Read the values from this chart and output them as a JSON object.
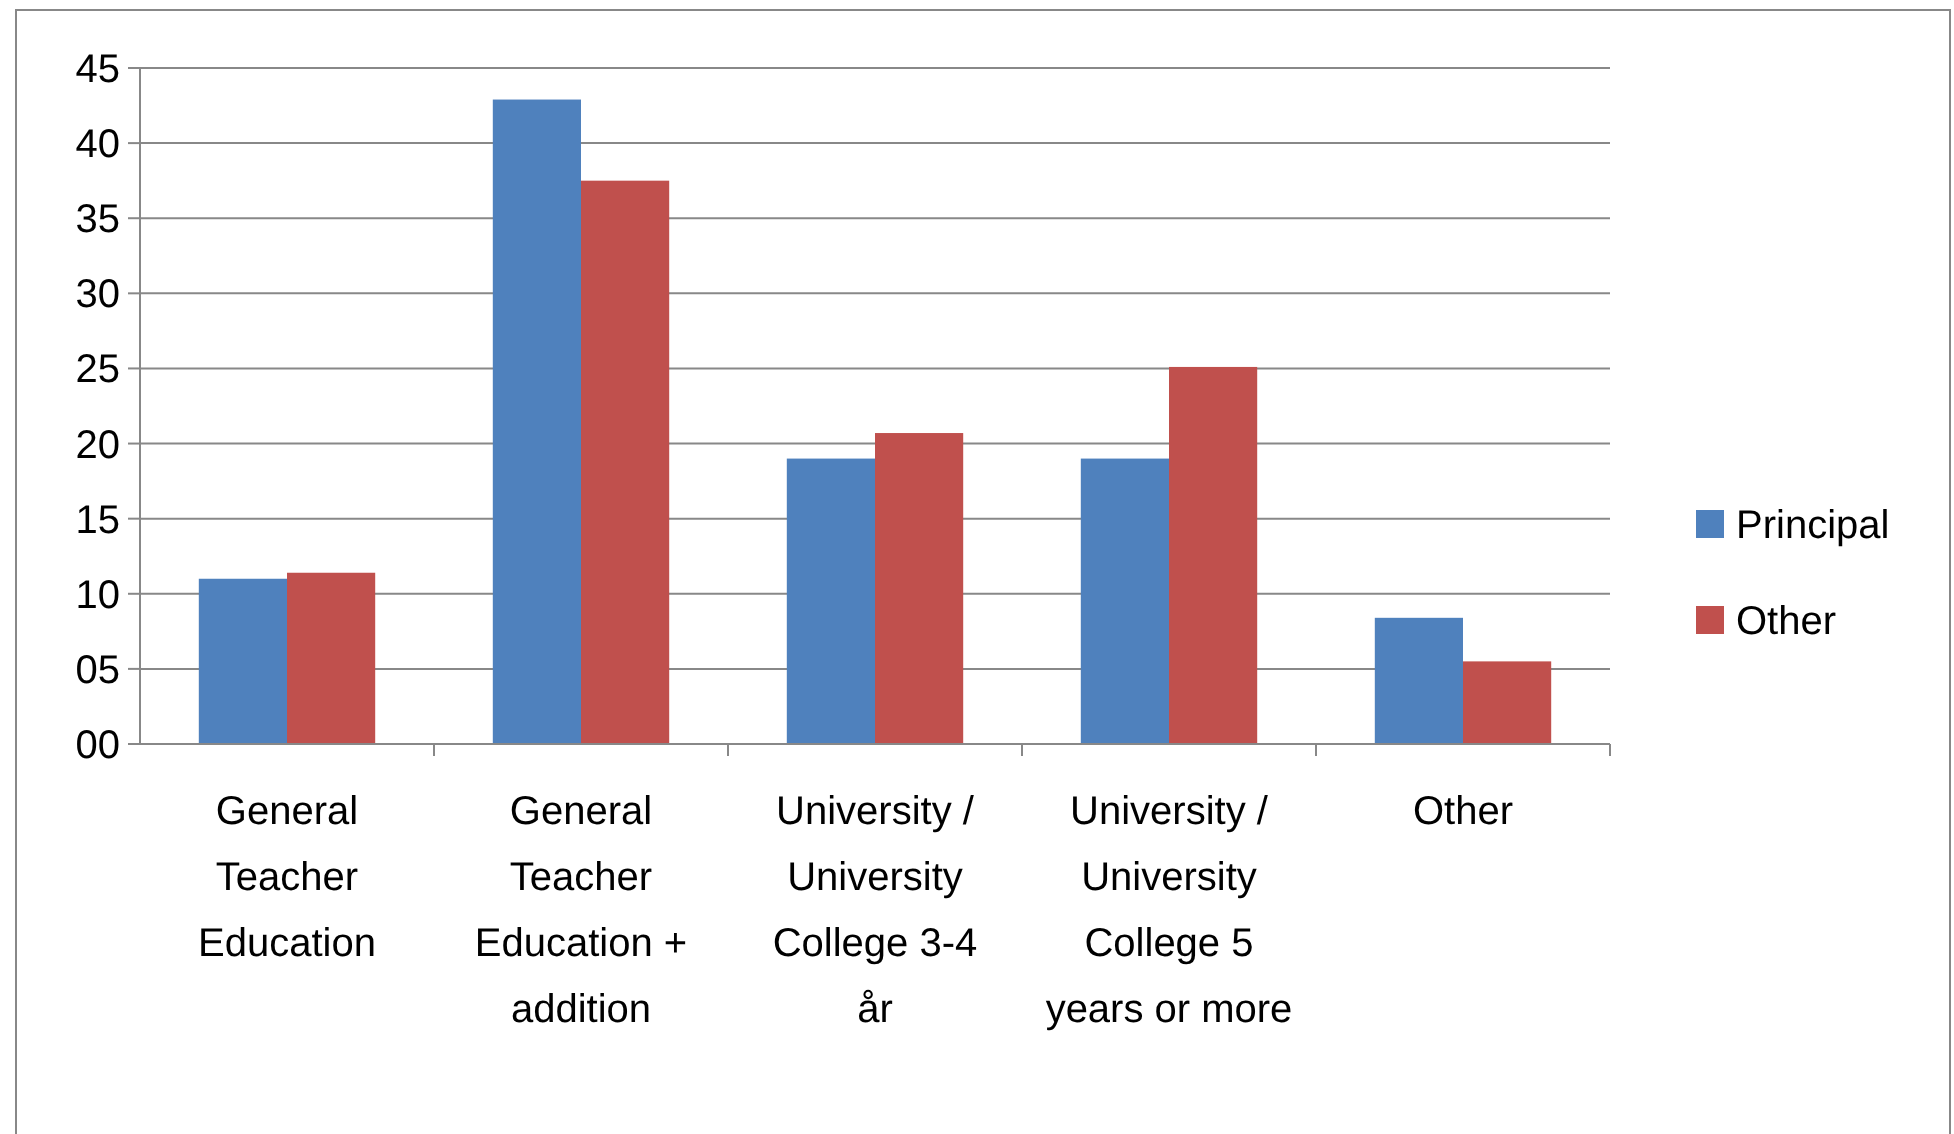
{
  "chart_data": {
    "type": "bar",
    "categories": [
      "General Teacher Education",
      "General Teacher Education + addition",
      "University / University College 3-4 år",
      "University / University College 5 years or more",
      "Other"
    ],
    "series": [
      {
        "name": "Principal",
        "color": "#4f81bd",
        "values": [
          11,
          42.9,
          19,
          19,
          8.4
        ]
      },
      {
        "name": "Other",
        "color": "#c0504d",
        "values": [
          11.4,
          37.5,
          20.7,
          25.1,
          5.5
        ]
      }
    ],
    "ylim": [
      0,
      45
    ],
    "yticks": [
      {
        "value": 0,
        "label": "00"
      },
      {
        "value": 5,
        "label": "05"
      },
      10,
      15,
      20,
      25,
      30,
      35,
      40,
      45
    ],
    "grid": "y",
    "legend": "right"
  }
}
